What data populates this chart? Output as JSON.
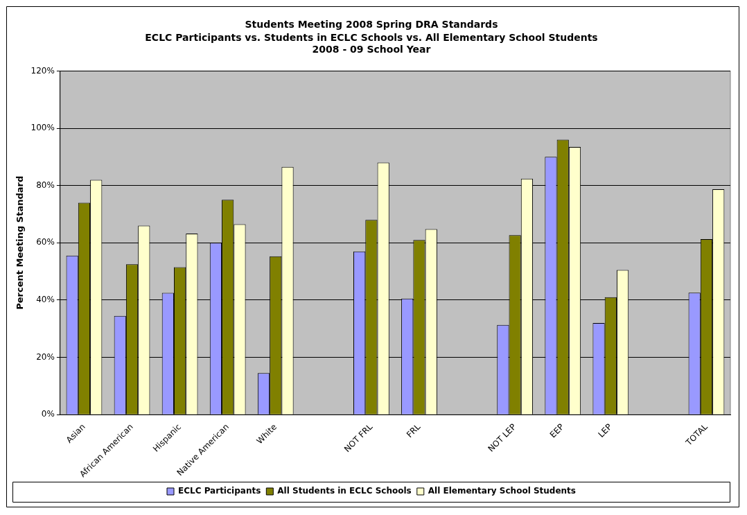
{
  "chart_data": {
    "type": "bar",
    "title": "Students Meeting 2008 Spring DRA Standards",
    "subtitle": "ECLC Participants vs. Students in ECLC Schools vs. All Elementary School Students\n2008 - 09 School Year",
    "ylabel": "Percent Meeting Standard",
    "categories": [
      "Asian",
      "African American",
      "Hispanic",
      "Native American",
      "White",
      null,
      "NOT FRL",
      "FRL",
      null,
      "NOT LEP",
      "EEP",
      "LEP",
      null,
      "TOTAL"
    ],
    "series": [
      {
        "name": "ECLC Participants",
        "color": "#9999ff",
        "values": [
          55.5,
          34.5,
          42.5,
          60,
          14.5,
          null,
          57,
          40.5,
          null,
          31.3,
          90,
          32,
          null,
          42.6
        ]
      },
      {
        "name": "All Students in ECLC Schools",
        "color": "#808000",
        "values": [
          74,
          52.5,
          51.5,
          75,
          55.3,
          null,
          68,
          61,
          null,
          62.7,
          96,
          41,
          null,
          61.3
        ]
      },
      {
        "name": "All Elementary School Students",
        "color": "#ffffcc",
        "values": [
          82,
          66,
          63.2,
          66.5,
          86.5,
          null,
          88,
          64.8,
          null,
          82.4,
          93.5,
          50.5,
          null,
          78.7
        ]
      }
    ],
    "ylim": [
      0,
      120
    ],
    "yticks": [
      {
        "value": 0,
        "label": "0%"
      },
      {
        "value": 20,
        "label": "20%"
      },
      {
        "value": 40,
        "label": "40%"
      },
      {
        "value": 60,
        "label": "60%"
      },
      {
        "value": 80,
        "label": "80%"
      },
      {
        "value": 100,
        "label": "100%"
      },
      {
        "value": 120,
        "label": "120%"
      }
    ],
    "grid": "y",
    "legend": "bottom"
  }
}
